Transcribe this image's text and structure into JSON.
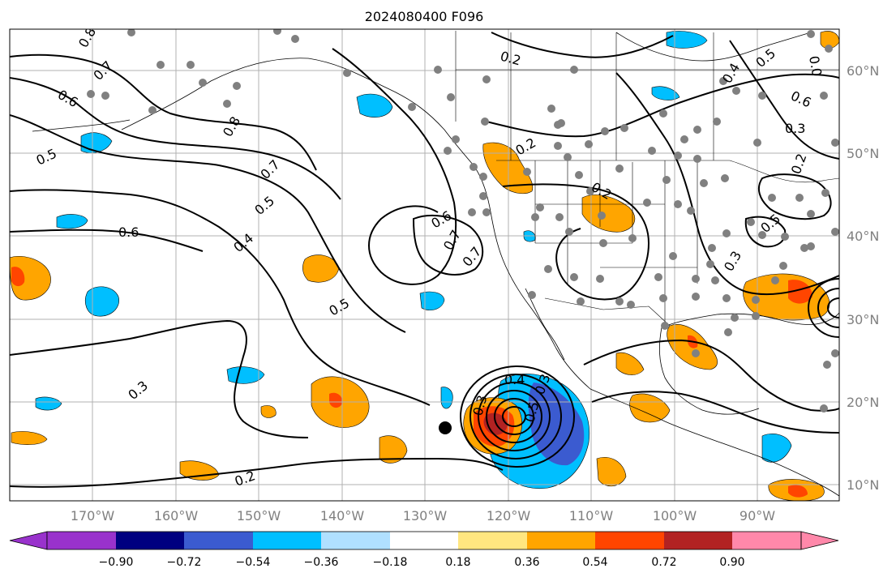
{
  "title": "2024080400 F096",
  "map": {
    "lon_labels": [
      "170°W",
      "160°W",
      "150°W",
      "140°W",
      "130°W",
      "120°W",
      "110°W",
      "100°W",
      "90°W"
    ],
    "lat_labels": [
      "60°N",
      "50°N",
      "40°N",
      "30°N",
      "20°N",
      "10°N"
    ],
    "contour_labels": [
      "0.8",
      "0.7",
      "0.6",
      "0.5",
      "0.8",
      "0.7",
      "0.5",
      "0.6",
      "0.4",
      "0.6",
      "0.7",
      "0.7",
      "0.5",
      "0.3",
      "0.2",
      "0.2",
      "0.2",
      "0.2",
      "0.4",
      "0.3",
      "0.5",
      "0.3",
      "0.4",
      "0.6",
      "0.3",
      "0.5",
      "0.2",
      "0.5",
      "0.3",
      "0.0"
    ],
    "colors": {
      "strong_neg": "#000080",
      "med_neg": "#3b5bd0",
      "neg": "#00bfff",
      "light_neg": "#b0e0ff",
      "pos_light": "#ffe680",
      "pos": "#ffa500",
      "pos_strong": "#ff4500",
      "pos_stronger": "#b22222",
      "max": "#ff88aa",
      "station": "#808080",
      "grid": "#b0b0b0",
      "axis_label": "#808080"
    }
  },
  "colorbar": {
    "tick_labels": [
      "−0.90",
      "−0.72",
      "−0.54",
      "−0.36",
      "−0.18",
      "0.18",
      "0.36",
      "0.54",
      "0.72",
      "0.90"
    ],
    "segment_colors": [
      "#9932cc",
      "#000080",
      "#3b5bd0",
      "#00bfff",
      "#b0e0ff",
      "#ffffff",
      "#ffe680",
      "#ffa500",
      "#ff4500",
      "#b22222",
      "#ff88aa"
    ]
  }
}
